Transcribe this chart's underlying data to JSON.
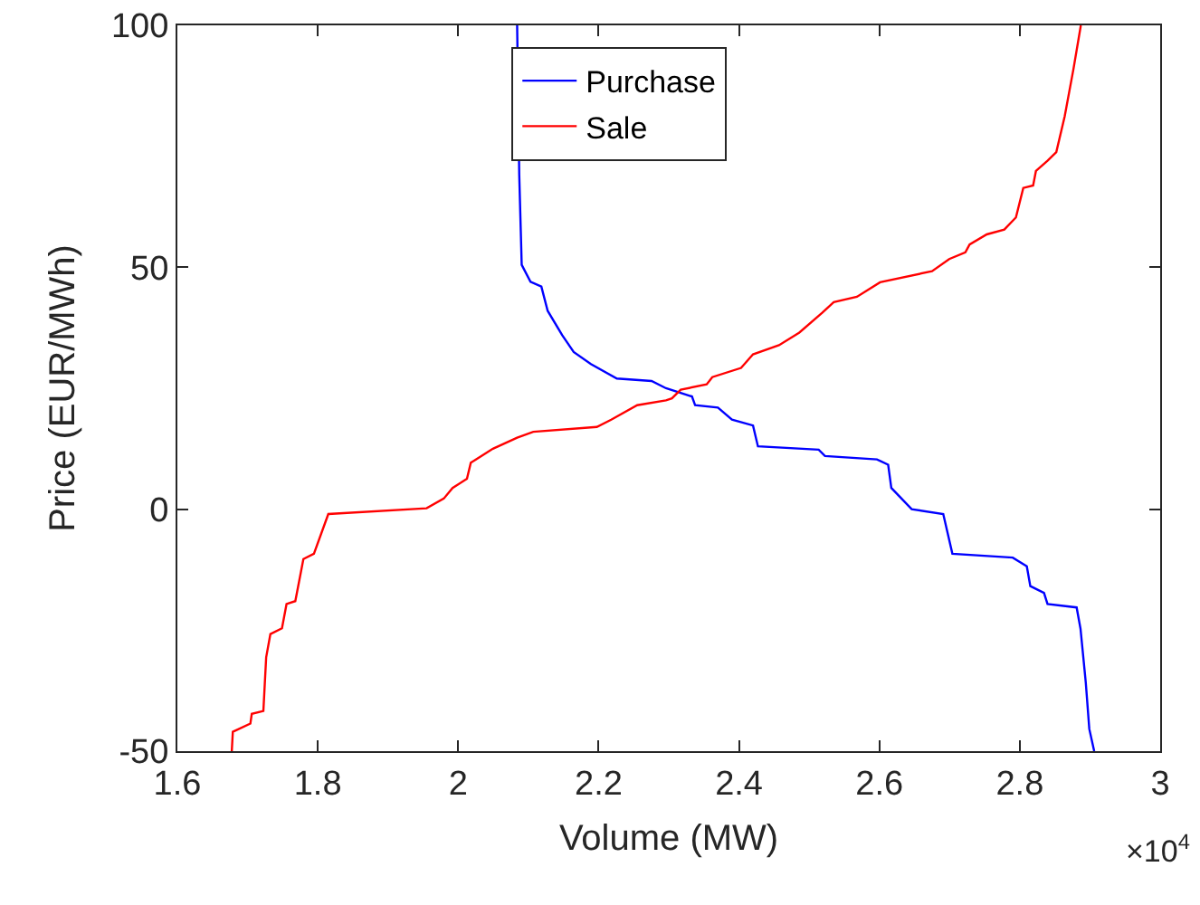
{
  "chart_data": {
    "type": "line",
    "xlabel": "Volume (MW)",
    "ylabel": "Price (EUR/MWh)",
    "xlim": [
      1.6,
      3
    ],
    "ylim": [
      -50,
      100
    ],
    "xticks": [
      1.6,
      1.8,
      2,
      2.2,
      2.4,
      2.6,
      2.8,
      3
    ],
    "yticks": [
      -50,
      0,
      50,
      100
    ],
    "annotations": [
      "×10$^{4}$"
    ],
    "legend": "top",
    "grid": false,
    "marker": "none",
    "line_style": "solid",
    "series": [
      {
        "name": "Purchase",
        "color": "#0000ff",
        "x": [
          2.084,
          2.087,
          2.0905,
          2.103,
          2.1185,
          2.1275,
          2.148,
          2.1645,
          2.189,
          2.226,
          2.2755,
          2.296,
          2.333,
          2.3375,
          2.37,
          2.39,
          2.42,
          2.427,
          2.5135,
          2.5225,
          2.5965,
          2.6125,
          2.617,
          2.646,
          2.691,
          2.704,
          2.79,
          2.81,
          2.815,
          2.8345,
          2.8395,
          2.881,
          2.8865,
          2.894,
          2.899,
          2.906
        ],
        "values": [
          100,
          69,
          50.5,
          47,
          46,
          41,
          36,
          32.5,
          30,
          27,
          26.5,
          25,
          23.3,
          21.5,
          21,
          18.5,
          17.3,
          13,
          12.3,
          11,
          10.3,
          9.2,
          4.4,
          0,
          -1,
          -9.2,
          -10,
          -11.8,
          -15.9,
          -17.3,
          -19.6,
          -20.3,
          -24.7,
          -35.8,
          -45.4,
          -50
        ]
      },
      {
        "name": "Sale",
        "color": "#ff0000",
        "x": [
          1.6775,
          1.679,
          1.704,
          1.706,
          1.7225,
          1.7265,
          1.7325,
          1.749,
          1.7555,
          1.768,
          1.7795,
          1.7945,
          1.815,
          1.955,
          1.9795,
          1.992,
          2.0125,
          2.018,
          2.0495,
          2.084,
          2.107,
          2.1975,
          2.218,
          2.255,
          2.296,
          2.3045,
          2.317,
          2.354,
          2.362,
          2.403,
          2.42,
          2.457,
          2.486,
          2.5185,
          2.535,
          2.568,
          2.601,
          2.675,
          2.6995,
          2.7225,
          2.7285,
          2.753,
          2.778,
          2.7945,
          2.805,
          2.819,
          2.823,
          2.8395,
          2.852,
          2.864,
          2.8765,
          2.887
        ],
        "values": [
          -50,
          -46,
          -44.3,
          -42.3,
          -41.7,
          -30.6,
          -25.8,
          -24.6,
          -19.6,
          -19,
          -10.3,
          -9.2,
          -1,
          0.2,
          2.2,
          4.4,
          6.3,
          9.6,
          12.5,
          14.8,
          16,
          17,
          18.5,
          21.5,
          22.5,
          22.9,
          24.7,
          25.8,
          27.3,
          29.2,
          32,
          33.9,
          36.5,
          40.6,
          42.8,
          43.9,
          46.9,
          49.2,
          51.7,
          53.1,
          54.7,
          56.8,
          57.8,
          60.3,
          66.4,
          66.9,
          69.9,
          72,
          73.8,
          81.2,
          91,
          100
        ]
      }
    ]
  }
}
